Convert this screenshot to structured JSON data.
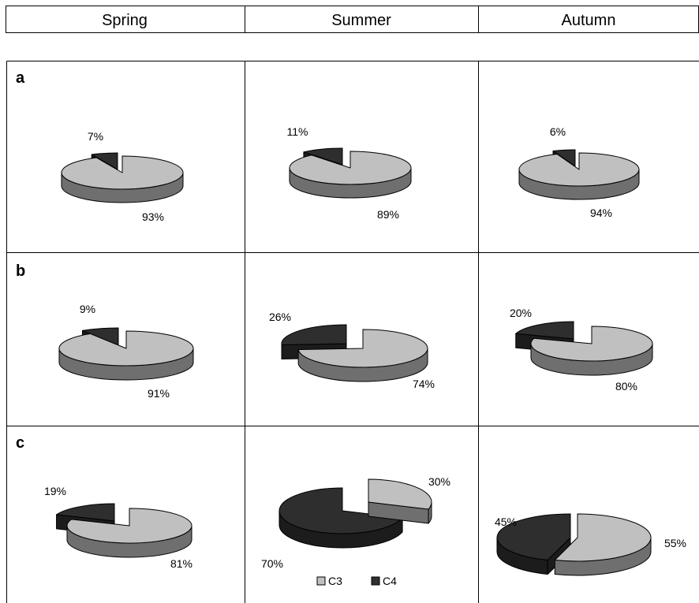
{
  "columns": [
    "Spring",
    "Summer",
    "Autumn"
  ],
  "legend": {
    "entries": [
      {
        "label": "C3",
        "color": "#c0c0c0"
      },
      {
        "label": "C4",
        "color": "#303030"
      }
    ]
  },
  "colors": {
    "C3": "#c0c0c0",
    "C3_side": "#6f6f6f",
    "C4": "#2e2e2e",
    "C4_side": "#1c1c1c"
  },
  "chart_data": [
    {
      "type": "pie",
      "panel": "a",
      "season": "Spring",
      "categories": [
        "C3",
        "C4"
      ],
      "values": [
        93,
        7
      ],
      "labels": [
        "93%",
        "7%"
      ]
    },
    {
      "type": "pie",
      "panel": "a",
      "season": "Summer",
      "categories": [
        "C3",
        "C4"
      ],
      "values": [
        89,
        11
      ],
      "labels": [
        "89%",
        "11%"
      ]
    },
    {
      "type": "pie",
      "panel": "a",
      "season": "Autumn",
      "categories": [
        "C3",
        "C4"
      ],
      "values": [
        94,
        6
      ],
      "labels": [
        "94%",
        "6%"
      ]
    },
    {
      "type": "pie",
      "panel": "b",
      "season": "Spring",
      "categories": [
        "C3",
        "C4"
      ],
      "values": [
        91,
        9
      ],
      "labels": [
        "91%",
        "9%"
      ]
    },
    {
      "type": "pie",
      "panel": "b",
      "season": "Summer",
      "categories": [
        "C3",
        "C4"
      ],
      "values": [
        74,
        26
      ],
      "labels": [
        "74%",
        "26%"
      ]
    },
    {
      "type": "pie",
      "panel": "b",
      "season": "Autumn",
      "categories": [
        "C3",
        "C4"
      ],
      "values": [
        80,
        20
      ],
      "labels": [
        "80%",
        "20%"
      ]
    },
    {
      "type": "pie",
      "panel": "c",
      "season": "Spring",
      "categories": [
        "C3",
        "C4"
      ],
      "values": [
        81,
        19
      ],
      "labels": [
        "81%",
        "19%"
      ]
    },
    {
      "type": "pie",
      "panel": "c",
      "season": "Summer",
      "categories": [
        "C3",
        "C4"
      ],
      "values": [
        30,
        70
      ],
      "labels": [
        "30%",
        "70%"
      ]
    },
    {
      "type": "pie",
      "panel": "c",
      "season": "Autumn",
      "categories": [
        "C3",
        "C4"
      ],
      "values": [
        55,
        45
      ],
      "labels": [
        "55%",
        "45%"
      ]
    }
  ]
}
